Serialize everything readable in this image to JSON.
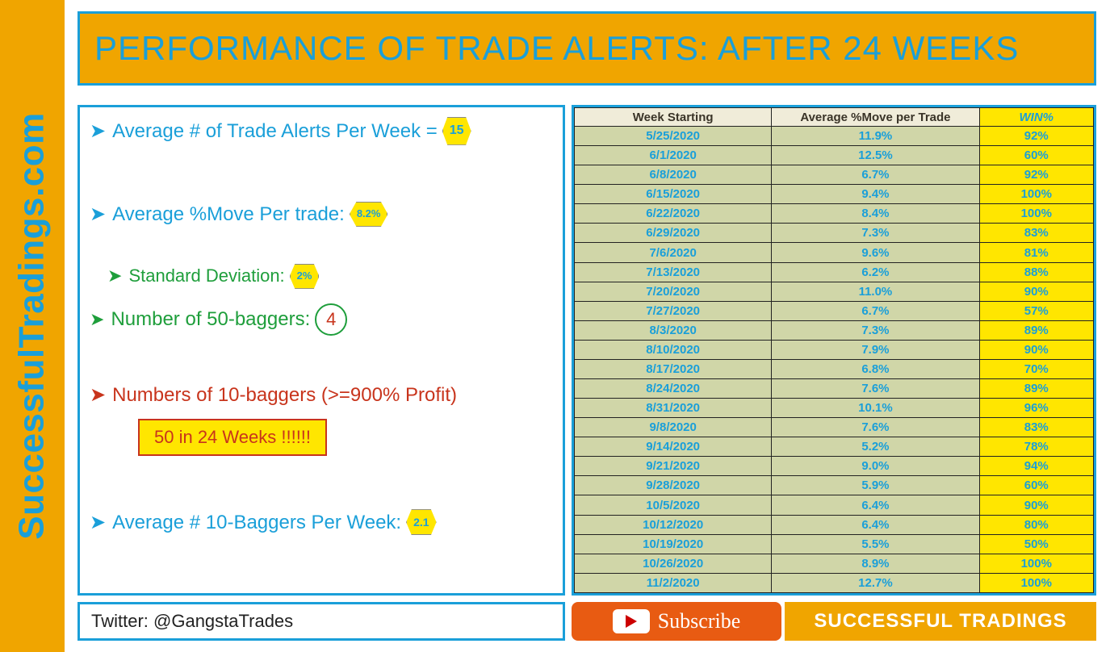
{
  "sidebar": {
    "brand": "SuccessfulTradings.com"
  },
  "header": {
    "title": "PERFORMANCE OF TRADE ALERTS: AFTER 24 WEEKS"
  },
  "stats": {
    "avg_alerts_label": "Average # of Trade Alerts Per Week =",
    "avg_alerts_value": "15",
    "avg_move_label": "Average %Move Per trade:",
    "avg_move_value": "8.2%",
    "std_dev_label": "Standard Deviation:",
    "std_dev_value": "2%",
    "fifty_baggers_label": "Number of 50-baggers:",
    "fifty_baggers_value": "4",
    "ten_baggers_label": "Numbers of 10-baggers (>=900% Profit)",
    "ten_baggers_callout": "50 in 24 Weeks !!!!!!",
    "avg_ten_baggers_label": "Average # 10-Baggers Per Week:",
    "avg_ten_baggers_value": "2.1"
  },
  "table": {
    "headers": {
      "week": "Week Starting",
      "move": "Average %Move per Trade",
      "win": "WIN%"
    },
    "rows": [
      {
        "date": "5/25/2020",
        "move": "11.9%",
        "win": "92%"
      },
      {
        "date": "6/1/2020",
        "move": "12.5%",
        "win": "60%"
      },
      {
        "date": "6/8/2020",
        "move": "6.7%",
        "win": "92%"
      },
      {
        "date": "6/15/2020",
        "move": "9.4%",
        "win": "100%"
      },
      {
        "date": "6/22/2020",
        "move": "8.4%",
        "win": "100%"
      },
      {
        "date": "6/29/2020",
        "move": "7.3%",
        "win": "83%"
      },
      {
        "date": "7/6/2020",
        "move": "9.6%",
        "win": "81%"
      },
      {
        "date": "7/13/2020",
        "move": "6.2%",
        "win": "88%"
      },
      {
        "date": "7/20/2020",
        "move": "11.0%",
        "win": "90%"
      },
      {
        "date": "7/27/2020",
        "move": "6.7%",
        "win": "57%"
      },
      {
        "date": "8/3/2020",
        "move": "7.3%",
        "win": "89%"
      },
      {
        "date": "8/10/2020",
        "move": "7.9%",
        "win": "90%"
      },
      {
        "date": "8/17/2020",
        "move": "6.8%",
        "win": "70%"
      },
      {
        "date": "8/24/2020",
        "move": "7.6%",
        "win": "89%"
      },
      {
        "date": "8/31/2020",
        "move": "10.1%",
        "win": "96%"
      },
      {
        "date": "9/8/2020",
        "move": "7.6%",
        "win": "83%"
      },
      {
        "date": "9/14/2020",
        "move": "5.2%",
        "win": "78%"
      },
      {
        "date": "9/21/2020",
        "move": "9.0%",
        "win": "94%"
      },
      {
        "date": "9/28/2020",
        "move": "5.9%",
        "win": "60%"
      },
      {
        "date": "10/5/2020",
        "move": "6.4%",
        "win": "90%"
      },
      {
        "date": "10/12/2020",
        "move": "6.4%",
        "win": "80%"
      },
      {
        "date": "10/19/2020",
        "move": "5.5%",
        "win": "50%"
      },
      {
        "date": "10/26/2020",
        "move": "8.9%",
        "win": "100%"
      },
      {
        "date": "11/2/2020",
        "move": "12.7%",
        "win": "100%"
      }
    ]
  },
  "footer": {
    "twitter": "Twitter: @GangstaTrades",
    "subscribe": "Subscribe",
    "brand": "SUCCESSFUL TRADINGS"
  },
  "styling": {
    "accent_orange": "#f0a500",
    "accent_blue": "#1a9fd9",
    "accent_red": "#c8341c",
    "accent_green": "#1e9e3b",
    "highlight_yellow": "#ffe600",
    "table_cell_bg": "#d0d6a8",
    "table_header_bg": "#f0ecd9",
    "subscribe_bg": "#e85b12"
  }
}
